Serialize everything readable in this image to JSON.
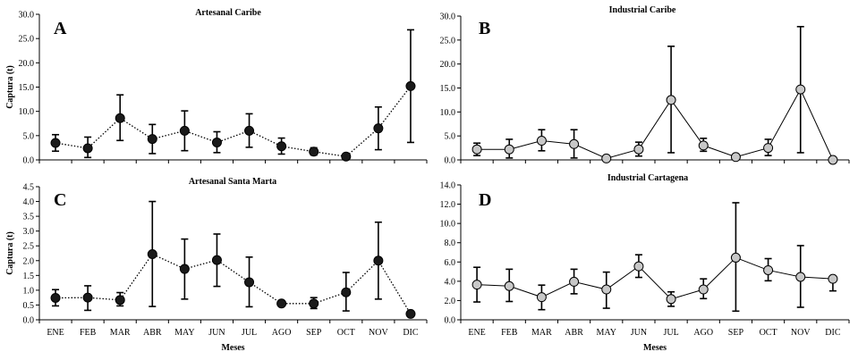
{
  "chart_data": [
    {
      "type": "line",
      "panel": "A",
      "title": "Artesanal Caribe",
      "xlabel": "",
      "ylabel": "Captura (t)",
      "ylim": [
        0,
        30
      ],
      "yticks": [
        "0.0",
        "5.0",
        "10.0",
        "15.0",
        "20.0",
        "25.0",
        "30.0"
      ],
      "categories": [
        "ENE",
        "FEB",
        "MAR",
        "ABR",
        "MAY",
        "JUN",
        "JUL",
        "AGO",
        "SEP",
        "OCT",
        "NOV",
        "DIC"
      ],
      "show_x_tick_labels": false,
      "line_style": "dotted",
      "marker_fill": "#1a1a1a",
      "series": [
        {
          "values": [
            3.5,
            2.4,
            8.6,
            4.3,
            6.0,
            3.6,
            6.0,
            2.8,
            1.7,
            0.7,
            6.5,
            15.2
          ],
          "err_high": [
            5.2,
            4.7,
            13.4,
            7.3,
            10.1,
            5.8,
            9.5,
            4.5,
            2.5,
            1.1,
            10.9,
            26.8
          ],
          "err_low": [
            1.8,
            0.5,
            4.0,
            1.3,
            1.9,
            1.5,
            2.6,
            1.2,
            1.0,
            0.4,
            2.1,
            3.6
          ]
        }
      ]
    },
    {
      "type": "line",
      "panel": "B",
      "title": "Industrial Caribe",
      "xlabel": "",
      "ylabel": "",
      "ylim": [
        0,
        30
      ],
      "yticks": [
        "0.0",
        "5.0",
        "10.0",
        "15.0",
        "20.0",
        "25.0",
        "30.0"
      ],
      "categories": [
        "ENE",
        "FEB",
        "MAR",
        "ABR",
        "MAY",
        "JUN",
        "JUL",
        "AGO",
        "SEP",
        "OCT",
        "NOV",
        "DIC"
      ],
      "show_x_tick_labels": false,
      "line_style": "solid",
      "marker_fill": "#c8c8c8",
      "series": [
        {
          "values": [
            2.2,
            2.2,
            4.0,
            3.3,
            0.3,
            2.2,
            12.5,
            3.0,
            0.6,
            2.5,
            14.7,
            0.0
          ],
          "err_high": [
            3.5,
            4.3,
            6.3,
            6.3,
            0.4,
            3.7,
            23.7,
            4.5,
            0.7,
            4.3,
            27.8,
            0.0
          ],
          "err_low": [
            0.9,
            0.4,
            1.9,
            0.4,
            0.2,
            0.8,
            1.5,
            1.8,
            0.5,
            0.9,
            1.5,
            0.0
          ]
        }
      ]
    },
    {
      "type": "line",
      "panel": "C",
      "title": "Artesanal Santa Marta",
      "xlabel": "Meses",
      "ylabel": "Captura (t)",
      "ylim": [
        0,
        4.5
      ],
      "yticks": [
        "0.0",
        "0.5",
        "1.0",
        "1.5",
        "2.0",
        "2.5",
        "3.0",
        "3.5",
        "4.0",
        "4.5"
      ],
      "categories": [
        "ENE",
        "FEB",
        "MAR",
        "ABR",
        "MAY",
        "JUN",
        "JUL",
        "AGO",
        "SEP",
        "OCT",
        "NOV",
        "DIC"
      ],
      "show_x_tick_labels": true,
      "line_style": "dotted",
      "marker_fill": "#1a1a1a",
      "series": [
        {
          "values": [
            0.74,
            0.75,
            0.67,
            2.22,
            1.72,
            2.02,
            1.27,
            0.55,
            0.55,
            0.93,
            2.0,
            0.2
          ],
          "err_high": [
            1.02,
            1.15,
            0.92,
            4.0,
            2.73,
            2.9,
            2.12,
            0.62,
            0.75,
            1.6,
            3.3,
            0.25
          ],
          "err_low": [
            0.47,
            0.32,
            0.47,
            0.45,
            0.7,
            1.13,
            0.44,
            0.48,
            0.38,
            0.3,
            0.7,
            0.16
          ]
        }
      ]
    },
    {
      "type": "line",
      "panel": "D",
      "title": "Industrial Cartagena",
      "xlabel": "Meses",
      "ylabel": "",
      "ylim": [
        0,
        14
      ],
      "yticks": [
        "0.0",
        "2.0",
        "4.0",
        "6.0",
        "8.0",
        "10.0",
        "12.0",
        "14.0"
      ],
      "categories": [
        "ENE",
        "FEB",
        "MAR",
        "ABR",
        "MAY",
        "JUN",
        "JUL",
        "AGO",
        "SEP",
        "OCT",
        "NOV",
        "DIC"
      ],
      "show_x_tick_labels": true,
      "line_style": "solid",
      "marker_fill": "#c8c8c8",
      "series": [
        {
          "values": [
            3.65,
            3.5,
            2.35,
            3.95,
            3.15,
            5.55,
            2.15,
            3.15,
            6.45,
            5.15,
            4.45,
            4.25
          ],
          "err_high": [
            5.45,
            5.25,
            3.6,
            5.25,
            4.95,
            6.75,
            2.9,
            4.25,
            12.15,
            6.35,
            7.7,
            4.5
          ],
          "err_low": [
            1.85,
            1.9,
            1.05,
            2.7,
            1.2,
            4.4,
            1.4,
            2.2,
            0.9,
            4.05,
            1.3,
            3.0
          ]
        }
      ]
    }
  ]
}
